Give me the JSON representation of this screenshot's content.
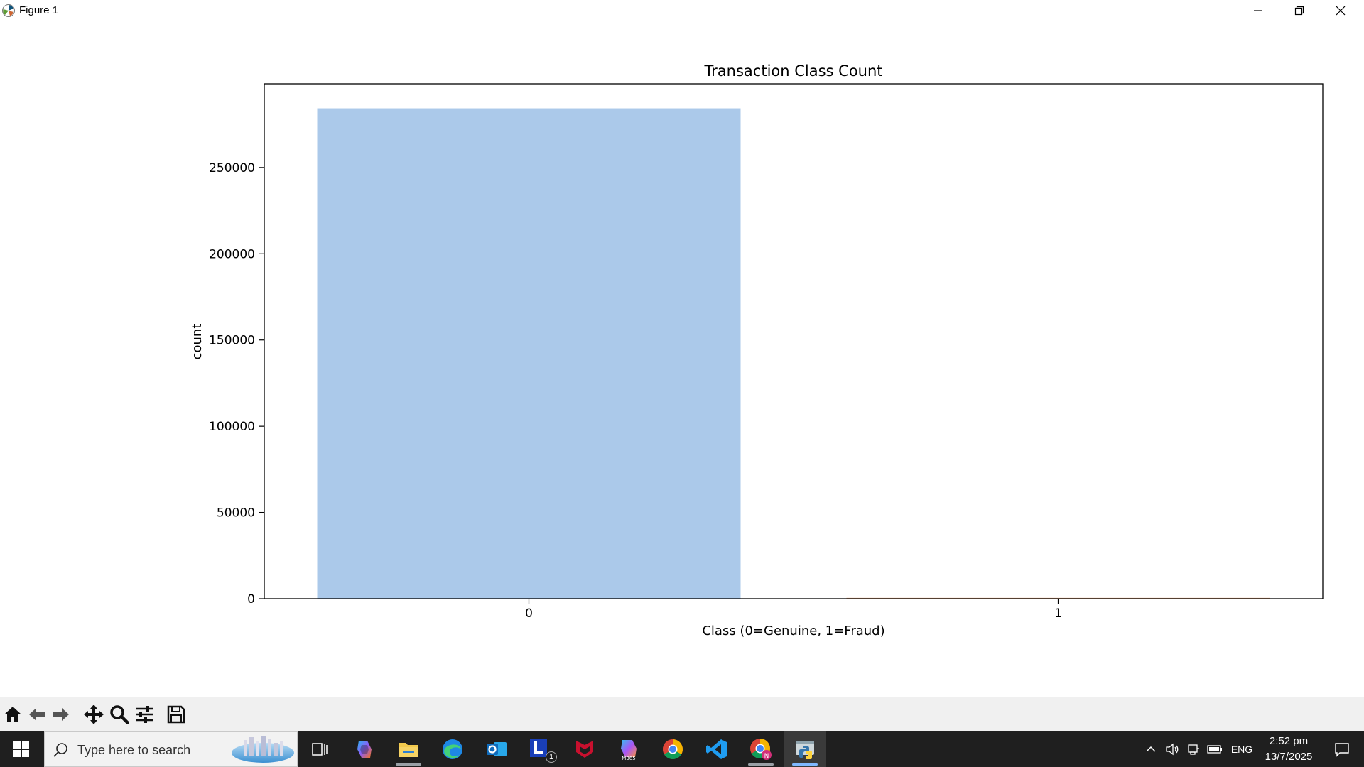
{
  "window": {
    "title": "Figure 1"
  },
  "chart_data": {
    "type": "bar",
    "title": "Transaction Class Count",
    "xlabel": "Class (0=Genuine, 1=Fraud)",
    "ylabel": "count",
    "categories": [
      "0",
      "1"
    ],
    "values": [
      284315,
      492
    ],
    "colors": [
      "#abc9ea",
      "#efb792"
    ],
    "ylim": [
      0,
      298536
    ],
    "yticks": [
      0,
      50000,
      100000,
      150000,
      200000,
      250000
    ],
    "ytick_labels": [
      "0",
      "50000",
      "100000",
      "150000",
      "200000",
      "250000"
    ],
    "grid": false,
    "legend": "none"
  },
  "toolbar": {
    "items": [
      "home-icon",
      "back-icon",
      "forward-icon",
      "pan-icon",
      "zoom-icon",
      "configure-subplots-icon",
      "save-icon"
    ]
  },
  "taskbar": {
    "search_placeholder": "Type here to search",
    "apps": [
      "copilot-icon",
      "file-explorer-icon",
      "edge-icon",
      "outlook-icon",
      "l-app-icon",
      "mcafee-icon",
      "m365-copilot-icon",
      "chrome-icon",
      "vscode-icon",
      "chrome-profile-icon",
      "python-icon"
    ],
    "l_app_badge": "1",
    "language": "ENG",
    "time": "2:52 pm",
    "date": "13/7/2025"
  }
}
